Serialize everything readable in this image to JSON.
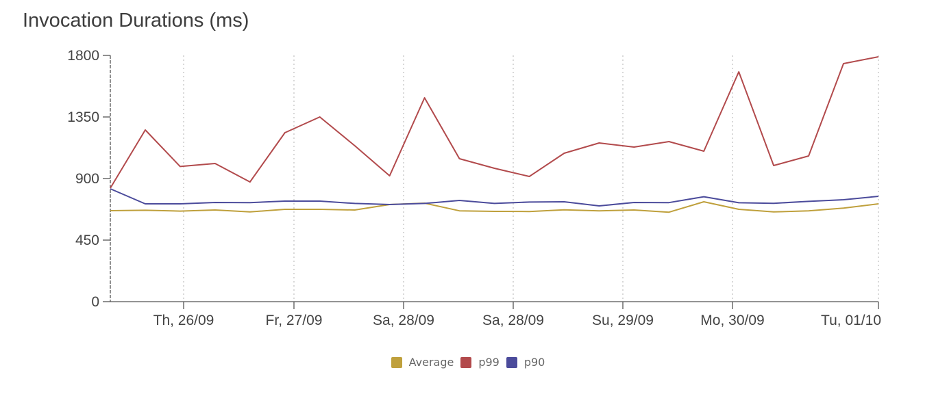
{
  "title": "Invocation Durations (ms)",
  "colors": {
    "average": "#bfa03c",
    "p99": "#b24a4c",
    "p90": "#4b4b9b"
  },
  "chart_data": {
    "type": "line",
    "title": "Invocation Durations (ms)",
    "xlabel": "",
    "ylabel": "",
    "ylim": [
      0,
      1800
    ],
    "yticks": [
      "0",
      "450",
      "900",
      "1350",
      "1800"
    ],
    "xticks": [
      "Th, 26/09",
      "Fr, 27/09",
      "Sa, 28/09",
      "Sa, 28/09",
      "Su, 29/09",
      "Mo, 30/09",
      "Tu, 01/10"
    ],
    "x": [
      0,
      1,
      2,
      3,
      4,
      5,
      6,
      7,
      8,
      9,
      10,
      11,
      12,
      13,
      14,
      15,
      16,
      17,
      18,
      19,
      20,
      21,
      22
    ],
    "grid": {
      "vertical": "dotted",
      "horizontal": false
    },
    "legend": "bottom-center",
    "series": [
      {
        "name": "Average",
        "color_key": "average",
        "values": [
          665,
          668,
          662,
          670,
          656,
          675,
          675,
          670,
          710,
          720,
          664,
          660,
          659,
          671,
          664,
          670,
          654,
          730,
          675,
          656,
          664,
          684,
          715
        ]
      },
      {
        "name": "p99",
        "color_key": "p99",
        "values": [
          830,
          1255,
          988,
          1010,
          875,
          1235,
          1350,
          1140,
          920,
          1490,
          1045,
          975,
          915,
          1085,
          1160,
          1130,
          1170,
          1100,
          1680,
          995,
          1065,
          1740,
          1790
        ]
      },
      {
        "name": "p90",
        "color_key": "p90",
        "values": [
          825,
          715,
          715,
          725,
          724,
          735,
          735,
          718,
          710,
          718,
          740,
          718,
          728,
          730,
          700,
          725,
          724,
          767,
          723,
          719,
          733,
          745,
          770
        ]
      }
    ]
  },
  "legend_items": [
    {
      "label": "Average",
      "color_key": "average"
    },
    {
      "label": "p99",
      "color_key": "p99"
    },
    {
      "label": "p90",
      "color_key": "p90"
    }
  ]
}
